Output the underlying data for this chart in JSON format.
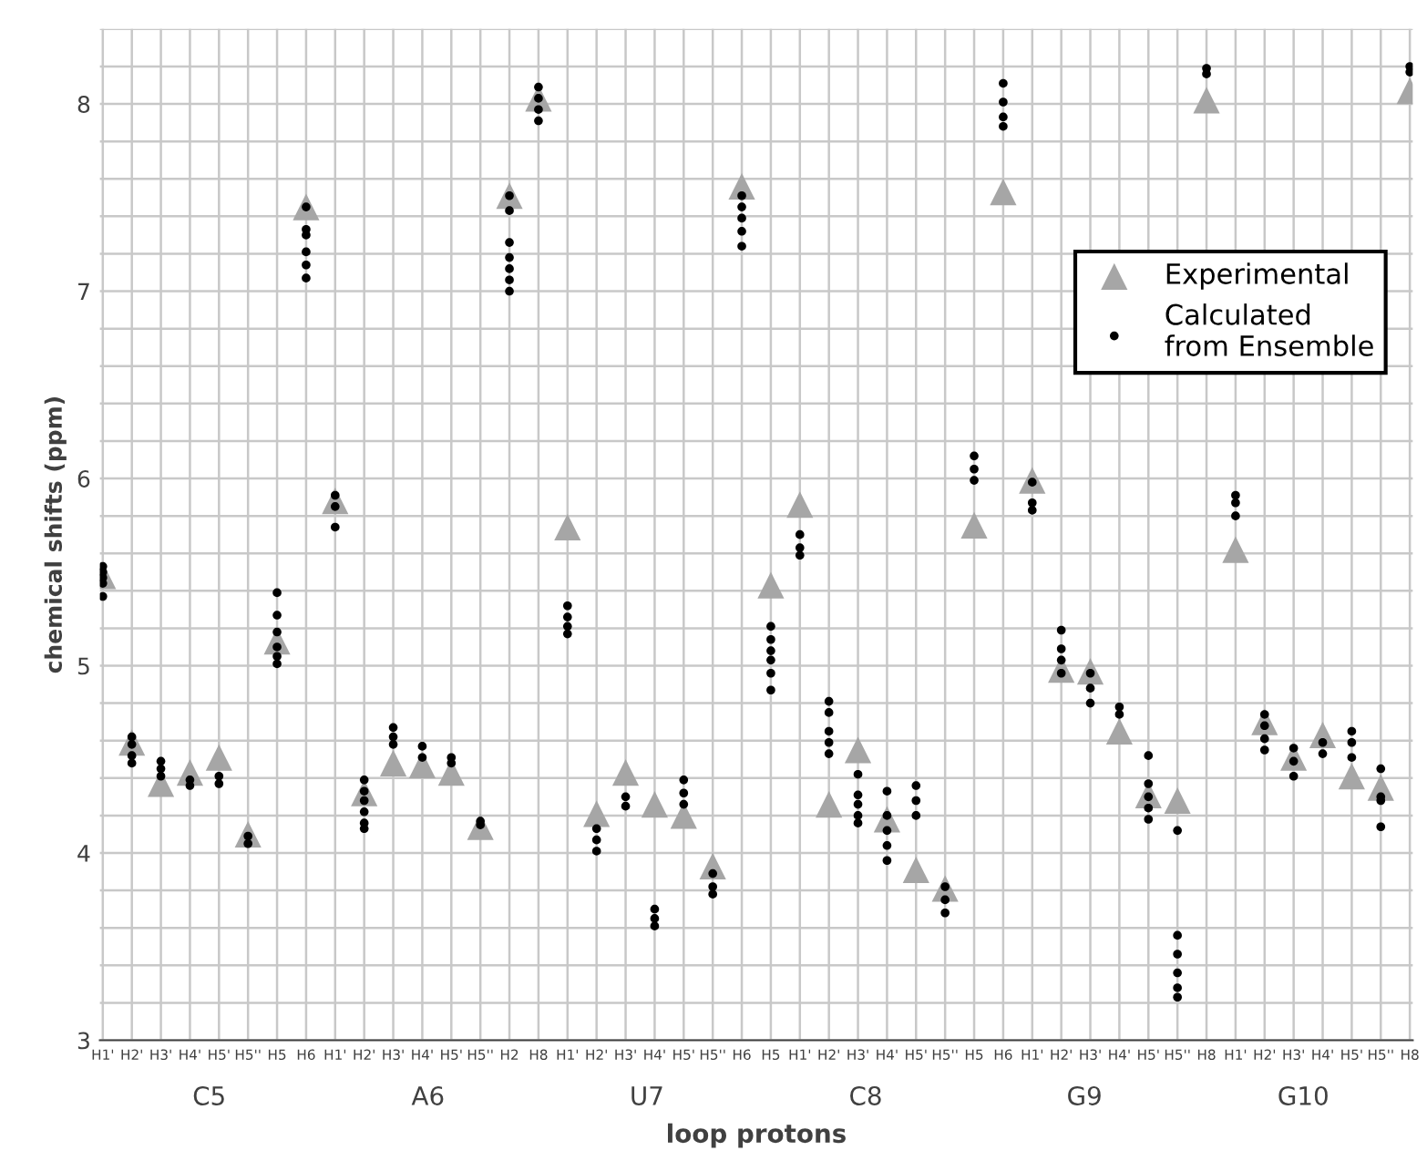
{
  "chart_data": {
    "type": "scatter",
    "xlabel": "loop protons",
    "ylabel": "chemical shifts (ppm)",
    "categories": [
      "H1'",
      "H2'",
      "H3'",
      "H4'",
      "H5'",
      "H5''",
      "H5",
      "H6",
      "H1'",
      "H2'",
      "H3'",
      "H4'",
      "H5'",
      "H5''",
      "H2",
      "H8",
      "H1'",
      "H2'",
      "H3'",
      "H4'",
      "H5'",
      "H5''",
      "H6",
      "H5",
      "H1'",
      "H2'",
      "H3'",
      "H4'",
      "H5'",
      "H5''",
      "H5",
      "H6",
      "H1'",
      "H2'",
      "H3'",
      "H4'",
      "H5'",
      "H5''",
      "H8",
      "H1'",
      "H2'",
      "H3'",
      "H4'",
      "H5'",
      "H5''",
      "H8"
    ],
    "annotations": [
      "C5",
      "A6",
      "U7",
      "C8",
      "G9",
      "G10"
    ],
    "ylim": [
      3,
      8.4
    ],
    "yticks": [
      3,
      {
        "value": 3.2,
        "label": null
      },
      {
        "value": 3.4,
        "label": null
      },
      {
        "value": 3.6,
        "label": null
      },
      {
        "value": 3.8,
        "label": null
      },
      4,
      {
        "value": 4.2,
        "label": null
      },
      {
        "value": 4.4,
        "label": null
      },
      {
        "value": 4.6,
        "label": null
      },
      {
        "value": 4.8,
        "label": null
      },
      5,
      {
        "value": 5.2,
        "label": null
      },
      {
        "value": 5.4,
        "label": null
      },
      {
        "value": 5.6,
        "label": null
      },
      {
        "value": 5.8,
        "label": null
      },
      6,
      {
        "value": 6.2,
        "label": null
      },
      {
        "value": 6.4,
        "label": null
      },
      {
        "value": 6.6,
        "label": null
      },
      {
        "value": 6.8,
        "label": null
      },
      7,
      {
        "value": 7.2,
        "label": null
      },
      {
        "value": 7.4,
        "label": null
      },
      {
        "value": 7.6,
        "label": null
      },
      {
        "value": 7.8,
        "label": null
      },
      8,
      {
        "value": 8.2,
        "label": null
      },
      {
        "value": 8.4,
        "label": null
      }
    ],
    "grid": true,
    "legend": "right",
    "series": [
      {
        "name": "Experimental",
        "color": "#a6a6a6",
        "marker": "triangle",
        "values": [
          5.48,
          4.59,
          4.37,
          4.43,
          4.51,
          4.1,
          5.13,
          7.45,
          5.88,
          4.32,
          4.48,
          4.47,
          4.43,
          4.14,
          7.51,
          8.03,
          5.74,
          4.21,
          4.43,
          4.26,
          4.2,
          3.93,
          7.56,
          5.43,
          5.86,
          4.26,
          4.55,
          4.18,
          3.91,
          3.81,
          5.75,
          7.53,
          5.99,
          4.98,
          4.97,
          4.65,
          4.31,
          4.28,
          8.02,
          5.62,
          4.7,
          4.51,
          4.63,
          4.41,
          4.35,
          8.07
        ]
      },
      {
        "name": "Calculated\nfrom Ensemble",
        "color": "#000000",
        "marker": "circle",
        "values": [
          5.53,
          4.62,
          4.49,
          4.39,
          4.41,
          4.09,
          5.39,
          7.45,
          5.91,
          4.39,
          4.67,
          4.57,
          4.51,
          4.17,
          7.51,
          8.09,
          5.32,
          4.13,
          4.3,
          3.7,
          4.39,
          3.89,
          7.51,
          5.21,
          5.7,
          4.81,
          4.42,
          4.33,
          4.36,
          3.82,
          6.12,
          8.11,
          5.98,
          5.19,
          4.96,
          4.78,
          4.52,
          4.12,
          8.19,
          5.91,
          4.74,
          4.56,
          4.59,
          4.65,
          4.45,
          8.2
        ]
      },
      {
        "color": "#000000",
        "marker": "circle",
        "values": [
          5.5,
          4.58,
          4.45,
          4.36,
          4.37,
          4.05,
          5.27,
          7.33,
          5.85,
          4.33,
          4.62,
          4.51,
          4.48,
          4.15,
          7.43,
          8.03,
          5.26,
          4.07,
          4.25,
          3.65,
          4.32,
          3.82,
          7.45,
          5.14,
          5.63,
          4.75,
          4.31,
          4.2,
          4.28,
          3.75,
          6.05,
          8.01,
          5.87,
          5.09,
          4.88,
          4.74,
          4.37,
          3.56,
          8.16,
          5.87,
          4.68,
          4.49,
          4.53,
          4.59,
          4.3,
          8.17
        ]
      },
      {
        "color": "#000000",
        "marker": "circle",
        "values": [
          5.47,
          4.52,
          4.41,
          null,
          null,
          null,
          5.18,
          7.3,
          5.74,
          4.28,
          4.58,
          null,
          null,
          null,
          7.26,
          7.97,
          5.21,
          4.01,
          null,
          3.61,
          4.26,
          3.78,
          7.39,
          5.08,
          5.59,
          4.65,
          4.26,
          4.12,
          4.2,
          3.68,
          5.99,
          7.93,
          5.83,
          5.03,
          4.8,
          null,
          4.3,
          3.46,
          null,
          5.8,
          4.61,
          4.41,
          null,
          4.51,
          4.28,
          null
        ]
      },
      {
        "color": "#000000",
        "marker": "circle",
        "values": [
          5.44,
          4.48,
          null,
          null,
          null,
          null,
          5.1,
          7.21,
          null,
          4.22,
          null,
          null,
          null,
          null,
          7.18,
          7.91,
          5.17,
          null,
          null,
          null,
          null,
          null,
          7.32,
          5.03,
          null,
          4.59,
          4.2,
          4.04,
          null,
          null,
          null,
          7.88,
          null,
          4.96,
          null,
          null,
          4.24,
          3.36,
          null,
          null,
          4.55,
          null,
          null,
          null,
          4.14,
          null
        ]
      },
      {
        "color": "#000000",
        "marker": "circle",
        "values": [
          5.37,
          null,
          null,
          null,
          null,
          null,
          5.05,
          7.14,
          null,
          4.16,
          null,
          null,
          null,
          null,
          7.12,
          null,
          null,
          null,
          null,
          null,
          null,
          null,
          7.24,
          4.96,
          null,
          4.53,
          4.16,
          3.96,
          null,
          null,
          null,
          null,
          null,
          null,
          null,
          null,
          4.18,
          3.28,
          null,
          null,
          null,
          null,
          null,
          null,
          null,
          null
        ]
      },
      {
        "color": "#000000",
        "marker": "circle",
        "values": [
          null,
          null,
          null,
          null,
          null,
          null,
          5.01,
          7.07,
          null,
          4.13,
          null,
          null,
          null,
          null,
          7.06,
          null,
          null,
          null,
          null,
          null,
          null,
          null,
          null,
          4.87,
          null,
          null,
          null,
          null,
          null,
          null,
          null,
          null,
          null,
          null,
          null,
          null,
          null,
          3.23,
          null,
          null,
          null,
          null,
          null,
          null,
          null,
          null
        ]
      },
      {
        "color": "#000000",
        "marker": "circle",
        "values": [
          null,
          null,
          null,
          null,
          null,
          null,
          null,
          null,
          null,
          null,
          null,
          null,
          null,
          null,
          7.0,
          null,
          null,
          null,
          null,
          null,
          null,
          null,
          null,
          null,
          null,
          null,
          null,
          null,
          null,
          null,
          null,
          null,
          null,
          null,
          null,
          null,
          null,
          null,
          null,
          null,
          null,
          null,
          null,
          null,
          null,
          null
        ]
      }
    ]
  }
}
